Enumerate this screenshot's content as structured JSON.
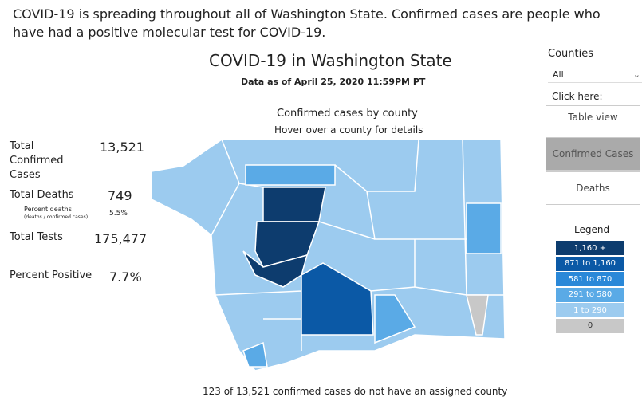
{
  "intro": "COVID-19 is spreading throughout all of Washington State. Confirmed cases are people who have had a positive molecular test for COVID-19.",
  "header": {
    "title": "COVID-19 in Washington State",
    "subtitle": "Data as of April 25, 2020 11:59PM PT"
  },
  "map": {
    "title": "Confirmed cases by county",
    "hint": "Hover over a county for details",
    "footnote": "123 of 13,521 confirmed cases do not have an assigned county"
  },
  "stats": [
    {
      "label": "Total Confirmed Cases",
      "value": "13,521"
    },
    {
      "label": "Total Deaths",
      "value": "749"
    },
    {
      "label": "Total Tests",
      "value": "175,477"
    },
    {
      "label": "Percent Positive",
      "value": "7.7%"
    }
  ],
  "percent_deaths": {
    "label": "Percent deaths",
    "sublabel": "(deaths / confirmed cases)",
    "value": "5.5%"
  },
  "filter": {
    "label": "Counties",
    "selected": "All",
    "prompt": "Click here:"
  },
  "buttons": [
    "Table view",
    "Confirmed Cases",
    "Deaths"
  ],
  "legend": {
    "title": "Legend",
    "items": [
      {
        "label": "1,160 +",
        "color": "#0d3c6e"
      },
      {
        "label": "871 to 1,160",
        "color": "#0b59a6"
      },
      {
        "label": "581 to 870",
        "color": "#2a88d8"
      },
      {
        "label": "291 to 580",
        "color": "#5aaae6"
      },
      {
        "label": "1 to 290",
        "color": "#9ccbef"
      },
      {
        "label": "0",
        "color": "#c8c8c8"
      }
    ]
  }
}
